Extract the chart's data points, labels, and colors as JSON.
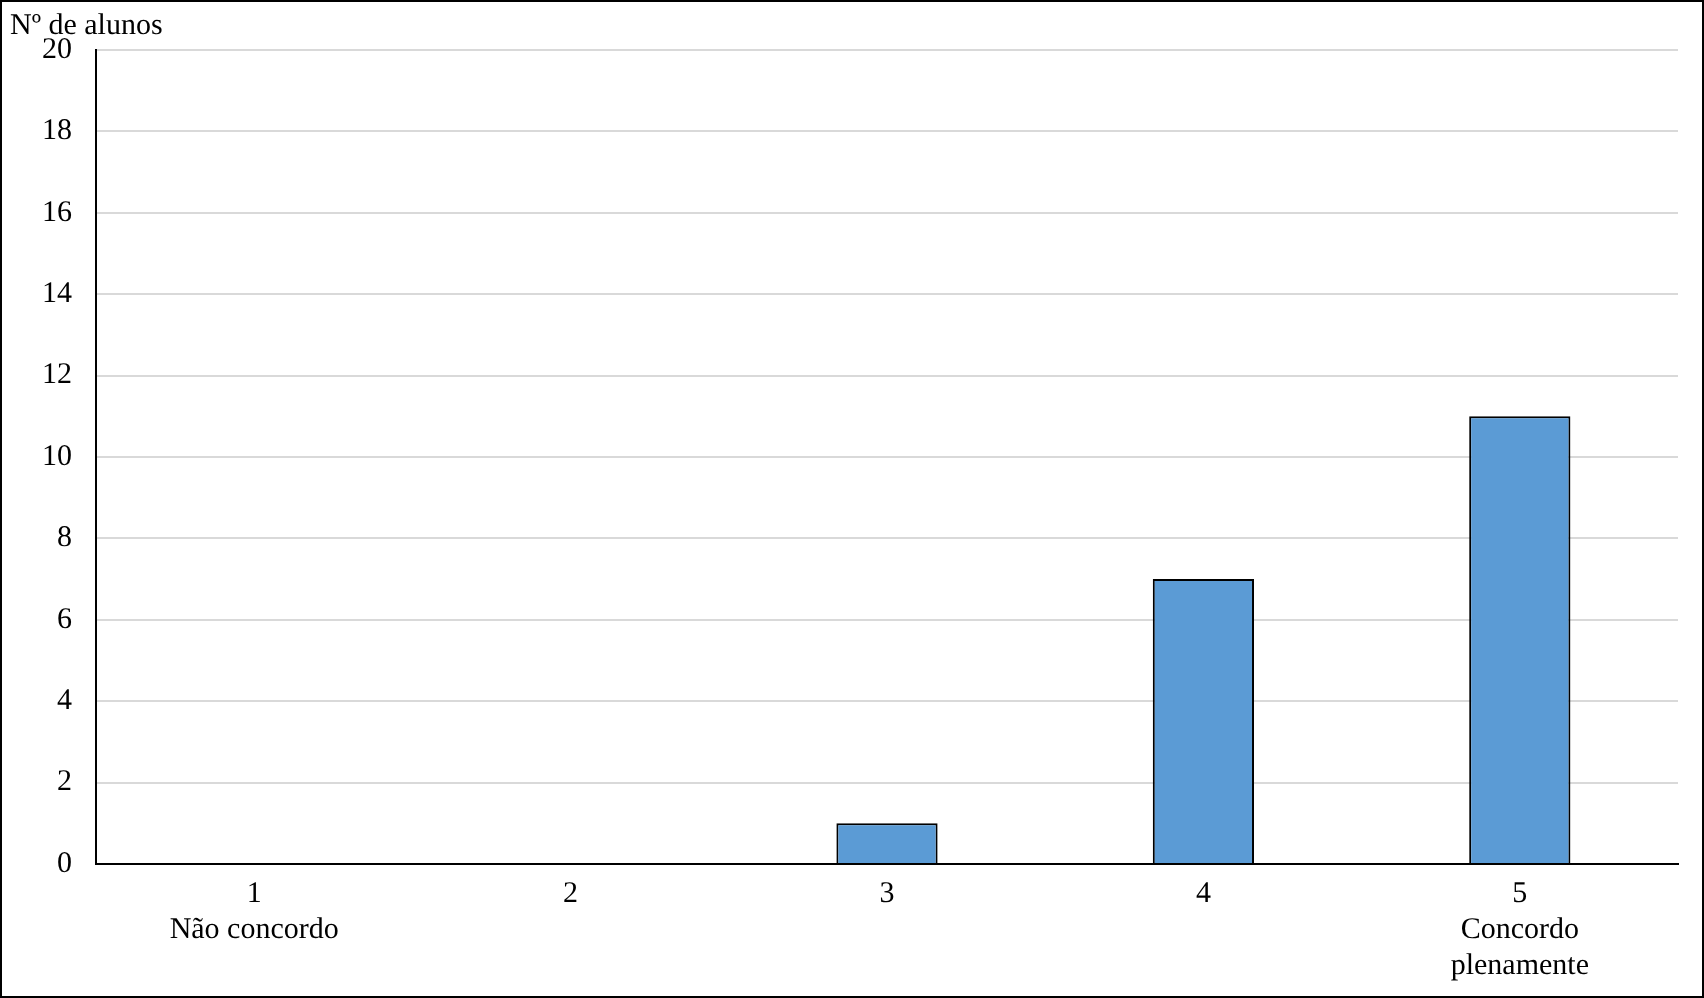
{
  "chart_data": {
    "type": "bar",
    "ylabel": "Nº de alunos",
    "categories": [
      "1\nNão concordo",
      "2",
      "3",
      "4",
      "5\nConcordo\nplenamente"
    ],
    "values": [
      0,
      0,
      1,
      7,
      11
    ],
    "color": "#5b9bd5",
    "ylim": [
      0,
      20
    ],
    "yticks": [
      0,
      2,
      4,
      6,
      8,
      10,
      12,
      14,
      16,
      18,
      20
    ],
    "grid": "y"
  }
}
